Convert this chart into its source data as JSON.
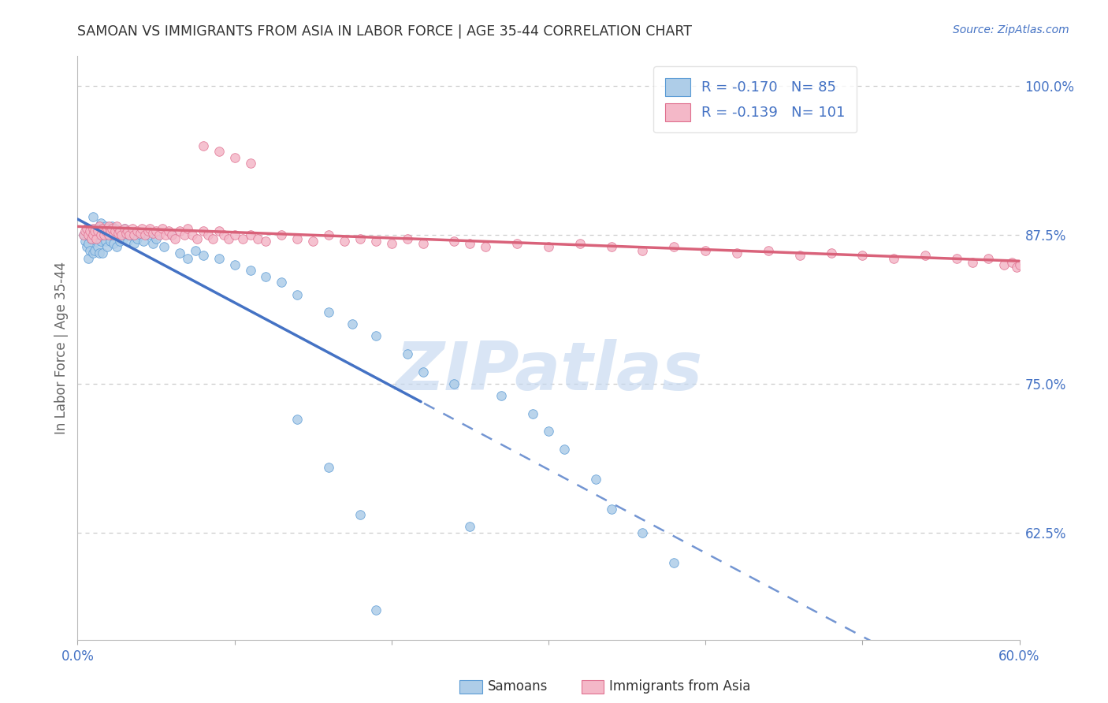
{
  "title": "SAMOAN VS IMMIGRANTS FROM ASIA IN LABOR FORCE | AGE 35-44 CORRELATION CHART",
  "source": "Source: ZipAtlas.com",
  "ylabel": "In Labor Force | Age 35-44",
  "xlim": [
    0.0,
    0.6
  ],
  "ylim": [
    0.535,
    1.025
  ],
  "R_samoan": -0.17,
  "N_samoan": 85,
  "R_asia": -0.139,
  "N_asia": 101,
  "color_samoan_fill": "#aecde8",
  "color_samoan_edge": "#5b9bd5",
  "color_asia_fill": "#f4b8c8",
  "color_asia_edge": "#e07090",
  "trendline_blue": "#4472c4",
  "trendline_pink": "#d9627a",
  "ytick_vals": [
    0.625,
    0.75,
    0.875,
    1.0
  ],
  "ytick_labels": [
    "62.5%",
    "75.0%",
    "87.5%",
    "100.0%"
  ],
  "xtick_vals": [
    0.0,
    0.1,
    0.2,
    0.3,
    0.4,
    0.5,
    0.6
  ],
  "xtick_labels": [
    "0.0%",
    "",
    "",
    "",
    "",
    "",
    "60.0%"
  ],
  "axis_label_color": "#4472c4",
  "title_color": "#333333",
  "grid_color": "#cccccc",
  "bg_color": "#ffffff",
  "watermark": "ZIPatlas",
  "watermark_color": "#c5d8f0",
  "trend_solid_end": 0.22,
  "samoan_x": [
    0.004,
    0.005,
    0.006,
    0.006,
    0.007,
    0.007,
    0.007,
    0.008,
    0.008,
    0.009,
    0.01,
    0.01,
    0.01,
    0.011,
    0.011,
    0.012,
    0.012,
    0.013,
    0.013,
    0.014,
    0.014,
    0.015,
    0.015,
    0.016,
    0.016,
    0.017,
    0.018,
    0.018,
    0.019,
    0.02,
    0.02,
    0.021,
    0.022,
    0.022,
    0.023,
    0.024,
    0.025,
    0.025,
    0.026,
    0.027,
    0.028,
    0.029,
    0.03,
    0.031,
    0.032,
    0.033,
    0.035,
    0.036,
    0.038,
    0.04,
    0.042,
    0.045,
    0.048,
    0.05,
    0.055,
    0.06,
    0.065,
    0.07,
    0.075,
    0.08,
    0.09,
    0.1,
    0.11,
    0.12,
    0.13,
    0.14,
    0.16,
    0.175,
    0.19,
    0.21,
    0.22,
    0.24,
    0.27,
    0.29,
    0.3,
    0.31,
    0.33,
    0.34,
    0.36,
    0.38,
    0.19,
    0.25,
    0.16,
    0.18,
    0.14
  ],
  "samoan_y": [
    0.875,
    0.87,
    0.88,
    0.865,
    0.875,
    0.868,
    0.855,
    0.878,
    0.862,
    0.872,
    0.878,
    0.86,
    0.89,
    0.875,
    0.862,
    0.88,
    0.87,
    0.865,
    0.88,
    0.875,
    0.86,
    0.885,
    0.87,
    0.875,
    0.86,
    0.875,
    0.87,
    0.882,
    0.865,
    0.88,
    0.875,
    0.87,
    0.875,
    0.882,
    0.868,
    0.88,
    0.875,
    0.865,
    0.875,
    0.87,
    0.878,
    0.872,
    0.88,
    0.875,
    0.87,
    0.875,
    0.876,
    0.868,
    0.872,
    0.875,
    0.87,
    0.875,
    0.868,
    0.872,
    0.865,
    0.875,
    0.86,
    0.855,
    0.862,
    0.858,
    0.855,
    0.85,
    0.845,
    0.84,
    0.835,
    0.825,
    0.81,
    0.8,
    0.79,
    0.775,
    0.76,
    0.75,
    0.74,
    0.725,
    0.71,
    0.695,
    0.67,
    0.645,
    0.625,
    0.6,
    0.56,
    0.63,
    0.68,
    0.64,
    0.72
  ],
  "asia_x": [
    0.004,
    0.005,
    0.006,
    0.007,
    0.008,
    0.009,
    0.01,
    0.01,
    0.011,
    0.012,
    0.013,
    0.014,
    0.015,
    0.016,
    0.017,
    0.018,
    0.019,
    0.02,
    0.02,
    0.021,
    0.022,
    0.023,
    0.024,
    0.025,
    0.026,
    0.027,
    0.028,
    0.03,
    0.031,
    0.032,
    0.033,
    0.035,
    0.036,
    0.038,
    0.04,
    0.041,
    0.043,
    0.045,
    0.046,
    0.048,
    0.05,
    0.052,
    0.054,
    0.056,
    0.058,
    0.06,
    0.062,
    0.065,
    0.068,
    0.07,
    0.073,
    0.076,
    0.08,
    0.083,
    0.086,
    0.09,
    0.093,
    0.096,
    0.1,
    0.105,
    0.11,
    0.115,
    0.12,
    0.13,
    0.14,
    0.15,
    0.16,
    0.17,
    0.18,
    0.19,
    0.2,
    0.21,
    0.22,
    0.24,
    0.25,
    0.26,
    0.28,
    0.3,
    0.32,
    0.34,
    0.36,
    0.38,
    0.4,
    0.42,
    0.44,
    0.46,
    0.48,
    0.5,
    0.52,
    0.54,
    0.56,
    0.57,
    0.58,
    0.59,
    0.595,
    0.598,
    0.6,
    0.08,
    0.09,
    0.1,
    0.11
  ],
  "asia_y": [
    0.875,
    0.878,
    0.88,
    0.875,
    0.878,
    0.872,
    0.88,
    0.875,
    0.878,
    0.872,
    0.878,
    0.882,
    0.875,
    0.88,
    0.875,
    0.878,
    0.88,
    0.875,
    0.882,
    0.878,
    0.88,
    0.875,
    0.878,
    0.882,
    0.876,
    0.878,
    0.875,
    0.88,
    0.876,
    0.878,
    0.875,
    0.88,
    0.875,
    0.878,
    0.876,
    0.88,
    0.875,
    0.878,
    0.88,
    0.876,
    0.878,
    0.875,
    0.88,
    0.875,
    0.878,
    0.875,
    0.872,
    0.878,
    0.875,
    0.88,
    0.875,
    0.872,
    0.878,
    0.875,
    0.872,
    0.878,
    0.875,
    0.872,
    0.875,
    0.872,
    0.875,
    0.872,
    0.87,
    0.875,
    0.872,
    0.87,
    0.875,
    0.87,
    0.872,
    0.87,
    0.868,
    0.872,
    0.868,
    0.87,
    0.868,
    0.865,
    0.868,
    0.865,
    0.868,
    0.865,
    0.862,
    0.865,
    0.862,
    0.86,
    0.862,
    0.858,
    0.86,
    0.858,
    0.855,
    0.858,
    0.855,
    0.852,
    0.855,
    0.85,
    0.852,
    0.848,
    0.85,
    0.95,
    0.945,
    0.94,
    0.935
  ]
}
